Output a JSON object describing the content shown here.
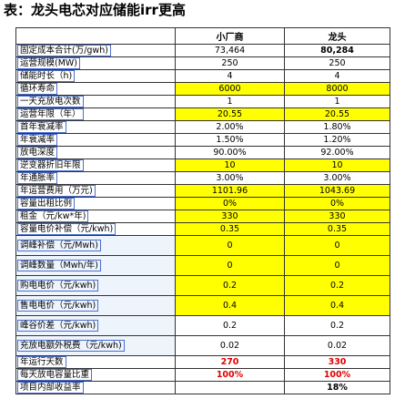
{
  "title": "表：龙头电芯对应储能irr更高",
  "table": {
    "header": [
      "小厂商",
      "龙头"
    ],
    "rows": [
      {
        "label": "固定成本合计(万/gwh)",
        "values": [
          "73,464",
          "80,284"
        ],
        "bold": true
      },
      {
        "label": "运营规模(MW)",
        "values": [
          "250",
          "250"
        ]
      },
      {
        "label": "储能时长（h)",
        "values": [
          "4",
          "4"
        ]
      },
      {
        "label": "循环寿命",
        "values": [
          "6000",
          "8000"
        ],
        "fill": "#ffff00"
      },
      {
        "label": "一天充放电次数",
        "values": [
          "1",
          "1"
        ]
      },
      {
        "label": "运营年限（年）",
        "values": [
          "20.55",
          "20.55"
        ],
        "fill": "#ffff00"
      },
      {
        "label": "首年衰减率",
        "values": [
          "2.00%",
          "1.80%"
        ]
      },
      {
        "label": "年衰减率",
        "values": [
          "1.50%",
          "1.20%"
        ]
      },
      {
        "label": "放电深度",
        "values": [
          "90.00%",
          "92.00%"
        ]
      },
      {
        "label": "逆变器折旧年限",
        "values": [
          "10",
          "10"
        ],
        "fill": "#ffff00"
      },
      {
        "label": "年通胀率",
        "values": [
          "3.00%",
          "3.00%"
        ]
      },
      {
        "label": "年运营费用（万元)",
        "values": [
          "1101.96",
          "1043.69"
        ],
        "fill": "#ffff00"
      },
      {
        "label": "容量出租比例",
        "values": [
          "0%",
          "0%"
        ],
        "fill": "#ffff00"
      },
      {
        "label": "租金（元/kw*年)",
        "values": [
          "330",
          "330"
        ],
        "fill": "#ffff00"
      },
      {
        "label": "容量电价补偿（元/kwh)",
        "values": [
          "0.35",
          "0.35"
        ],
        "fill": "#ffff00"
      },
      {
        "label": "调峰补偿（元/Mwh)",
        "values": [
          "0",
          "0"
        ],
        "fill": "#ffff00",
        "tall": true
      },
      {
        "label": "调峰数量（Mwh/年)",
        "values": [
          "0",
          "0"
        ],
        "fill": "#ffff00",
        "tall": true
      },
      {
        "label": "购电电价（元/kwh)",
        "values": [
          "0.2",
          "0.2"
        ],
        "fill": "#ffff00",
        "tall": true
      },
      {
        "label": "售电电价（元/kwh)",
        "values": [
          "0.4",
          "0.4"
        ],
        "fill": "#ffff00",
        "tall": true
      },
      {
        "label": "峰谷价差（元/kwh)",
        "values": [
          "0.2",
          "0.2"
        ],
        "tall": true
      },
      {
        "label": "充放电额外税费（元/kwh)",
        "values": [
          "0.02",
          "0.02"
        ],
        "tall": true
      },
      {
        "label": "年运行天数",
        "values": [
          "270",
          "330"
        ],
        "bold": true,
        "color": "#e00000"
      },
      {
        "label": "每天放电容量比重",
        "values": [
          "100%",
          "100%"
        ],
        "bold": true,
        "color": "#e00000"
      },
      {
        "label": "项目内部收益率",
        "values": [
          null,
          "18%"
        ],
        "bold": true
      }
    ]
  }
}
